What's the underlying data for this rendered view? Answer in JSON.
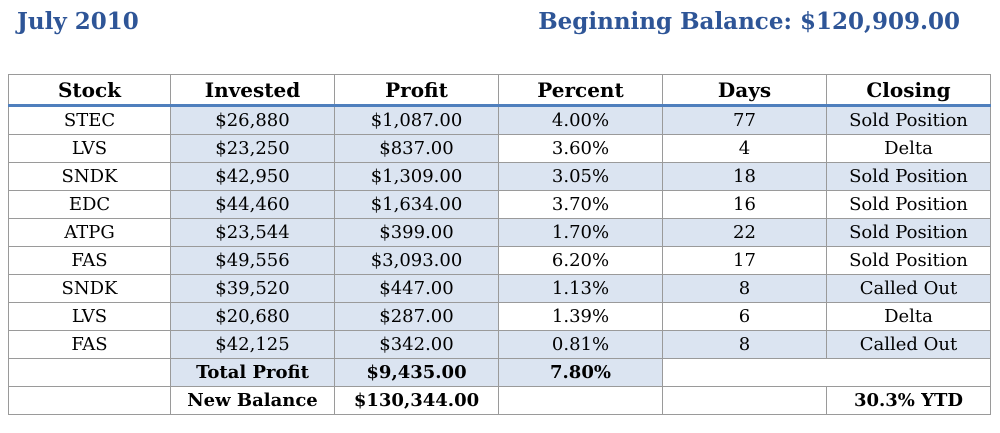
{
  "header": {
    "month": "July 2010",
    "beginning_balance": "Beginning Balance: $120,909.00"
  },
  "table": {
    "columns": [
      "Stock",
      "Invested",
      "Profit",
      "Percent",
      "Days",
      "Closing"
    ],
    "rows": [
      {
        "stock": "STEC",
        "invested": "$26,880",
        "profit": "$1,087.00",
        "percent": "4.00%",
        "days": "77",
        "closing": "Sold Position"
      },
      {
        "stock": "LVS",
        "invested": "$23,250",
        "profit": "$837.00",
        "percent": "3.60%",
        "days": "4",
        "closing": "Delta"
      },
      {
        "stock": "SNDK",
        "invested": "$42,950",
        "profit": "$1,309.00",
        "percent": "3.05%",
        "days": "18",
        "closing": "Sold Position"
      },
      {
        "stock": "EDC",
        "invested": "$44,460",
        "profit": "$1,634.00",
        "percent": "3.70%",
        "days": "16",
        "closing": "Sold Position"
      },
      {
        "stock": "ATPG",
        "invested": "$23,544",
        "profit": "$399.00",
        "percent": "1.70%",
        "days": "22",
        "closing": "Sold Position"
      },
      {
        "stock": "FAS",
        "invested": "$49,556",
        "profit": "$3,093.00",
        "percent": "6.20%",
        "days": "17",
        "closing": "Sold Position"
      },
      {
        "stock": "SNDK",
        "invested": "$39,520",
        "profit": "$447.00",
        "percent": "1.13%",
        "days": "8",
        "closing": "Called Out"
      },
      {
        "stock": "LVS",
        "invested": "$20,680",
        "profit": "$287.00",
        "percent": "1.39%",
        "days": "6",
        "closing": "Delta"
      },
      {
        "stock": "FAS",
        "invested": "$42,125",
        "profit": "$342.00",
        "percent": "0.81%",
        "days": "8",
        "closing": "Called Out"
      }
    ],
    "total": {
      "label": "Total Profit",
      "profit": "$9,435.00",
      "percent": "7.80%"
    },
    "new_balance": {
      "label": "New Balance",
      "value": "$130,344.00",
      "ytd": "30.3% YTD"
    }
  },
  "colors": {
    "header_text": "#2e5597",
    "band_fill": "#dbe4f1",
    "header_rule": "#4f7fbd"
  }
}
